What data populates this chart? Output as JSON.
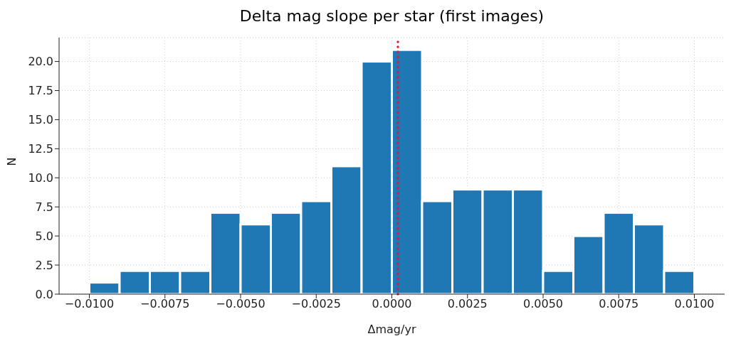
{
  "chart_data": {
    "type": "histogram",
    "title": "Delta mag slope per star (first images)",
    "xlabel": "Δmag/yr",
    "ylabel": "N",
    "bins": [
      -0.01,
      -0.009,
      -0.008,
      -0.007,
      -0.006,
      -0.005,
      -0.004,
      -0.003,
      -0.002,
      -0.001,
      0,
      0.001,
      0.002,
      0.003,
      0.004,
      0.005,
      0.006,
      0.007,
      0.008,
      0.009,
      0.01
    ],
    "values": [
      1,
      2,
      2,
      2,
      7,
      6,
      7,
      8,
      11,
      20,
      21,
      8,
      9,
      9,
      9,
      2,
      5,
      7,
      6,
      2
    ],
    "color": "#1f77b4",
    "xlim": [
      -0.011,
      0.011
    ],
    "xticks": [
      {
        "value": -0.01,
        "label": "−0.0100"
      },
      {
        "value": -0.0075,
        "label": "−0.0075"
      },
      {
        "value": -0.005,
        "label": "−0.0050"
      },
      {
        "value": -0.0025,
        "label": "−0.0025"
      },
      {
        "value": 0,
        "label": "0.0000"
      },
      {
        "value": 0.0025,
        "label": "0.0025"
      },
      {
        "value": 0.005,
        "label": "0.0050"
      },
      {
        "value": 0.0075,
        "label": "0.0075"
      },
      {
        "value": 0.01,
        "label": "0.0100"
      }
    ],
    "ylim": [
      0,
      22.05
    ],
    "yticks": [
      {
        "value": 0,
        "label": "0.0"
      },
      {
        "value": 2.5,
        "label": "2.5"
      },
      {
        "value": 5,
        "label": "5.0"
      },
      {
        "value": 7.5,
        "label": "7.5"
      },
      {
        "value": 10,
        "label": "10.0"
      },
      {
        "value": 12.5,
        "label": "12.5"
      },
      {
        "value": 15,
        "label": "15.0"
      },
      {
        "value": 17.5,
        "label": "17.5"
      },
      {
        "value": 20,
        "label": "20.0"
      }
    ],
    "ref_lines": [
      {
        "axis": "x",
        "value": 0.0002,
        "color": "#d81b3c",
        "line_style": "dotted"
      }
    ],
    "grid": true
  }
}
